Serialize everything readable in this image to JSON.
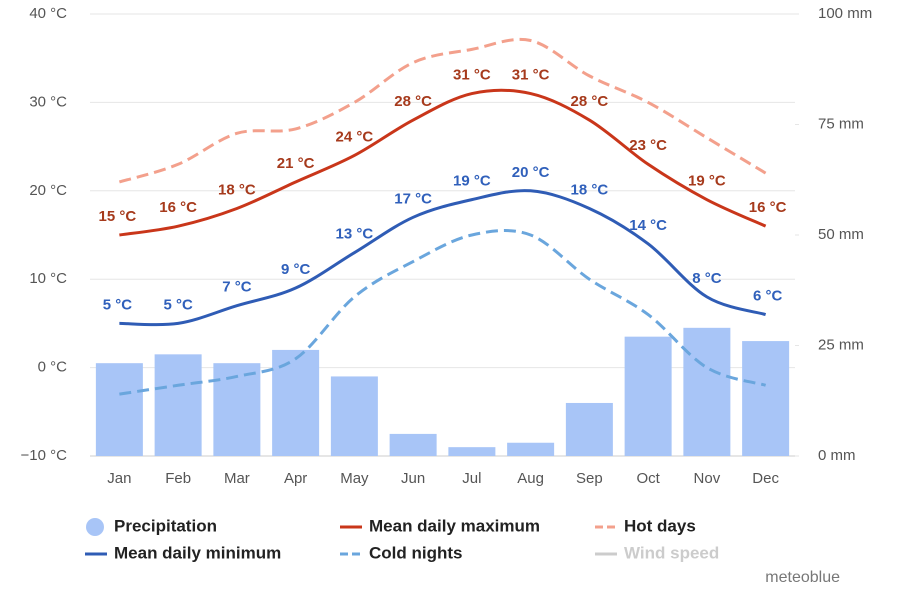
{
  "chart_data": {
    "type": "combo",
    "categories": [
      "Jan",
      "Feb",
      "Mar",
      "Apr",
      "May",
      "Jun",
      "Jul",
      "Aug",
      "Sep",
      "Oct",
      "Nov",
      "Dec"
    ],
    "ylim": [
      -10,
      40
    ],
    "yticks": [
      {
        "value": -10,
        "label": "−10 °C"
      },
      {
        "value": 0,
        "label": "0 °C"
      },
      {
        "value": 10,
        "label": "10 °C"
      },
      {
        "value": 20,
        "label": "20 °C"
      },
      {
        "value": 30,
        "label": "30 °C"
      },
      {
        "value": 40,
        "label": "40 °C"
      }
    ],
    "y2lim": [
      0,
      100
    ],
    "y2ticks": [
      {
        "value": 0,
        "label": "0 mm"
      },
      {
        "value": 25,
        "label": "25 mm"
      },
      {
        "value": 50,
        "label": "50 mm"
      },
      {
        "value": 75,
        "label": "75 mm"
      },
      {
        "value": 100,
        "label": "100 mm"
      }
    ],
    "grid": true,
    "series": [
      {
        "name": "Precipitation",
        "kind": "bar",
        "axis": "y2",
        "color": "#a8c5f7",
        "values": [
          21,
          23,
          21,
          24,
          18,
          5,
          2,
          3,
          12,
          27,
          29,
          26
        ]
      },
      {
        "name": "Mean daily maximum",
        "kind": "line",
        "color": "#c9361a",
        "label_color": "#a63a1c",
        "values": [
          15,
          16,
          18,
          21,
          24,
          28,
          31,
          31,
          28,
          23,
          19,
          16
        ],
        "value_labels": [
          "15 °C",
          "16 °C",
          "18 °C",
          "21 °C",
          "24 °C",
          "28 °C",
          "31 °C",
          "31 °C",
          "28 °C",
          "23 °C",
          "19 °C",
          "16 °C"
        ]
      },
      {
        "name": "Hot days",
        "kind": "line",
        "dashed": true,
        "color": "#f3a08c",
        "values": [
          21,
          23,
          26.5,
          27,
          30,
          34.5,
          36,
          37,
          33,
          30,
          26,
          22
        ]
      },
      {
        "name": "Mean daily minimum",
        "kind": "line",
        "color": "#2f5cb5",
        "label_color": "#3060bb",
        "values": [
          5,
          5,
          7,
          9,
          13,
          17,
          19,
          20,
          18,
          14,
          8,
          6
        ],
        "value_labels": [
          "5 °C",
          "5 °C",
          "7 °C",
          "9 °C",
          "13 °C",
          "17 °C",
          "19 °C",
          "20 °C",
          "18 °C",
          "14 °C",
          "8 °C",
          "6 °C"
        ]
      },
      {
        "name": "Cold nights",
        "kind": "line",
        "dashed": true,
        "color": "#6aa6dd",
        "values": [
          -3,
          -2,
          -1,
          1,
          8,
          12,
          15,
          15,
          10,
          6,
          0,
          -2
        ]
      },
      {
        "name": "Wind speed",
        "kind": "line",
        "hidden": true,
        "color": "#cccccc"
      }
    ],
    "credit": "meteoblue"
  }
}
